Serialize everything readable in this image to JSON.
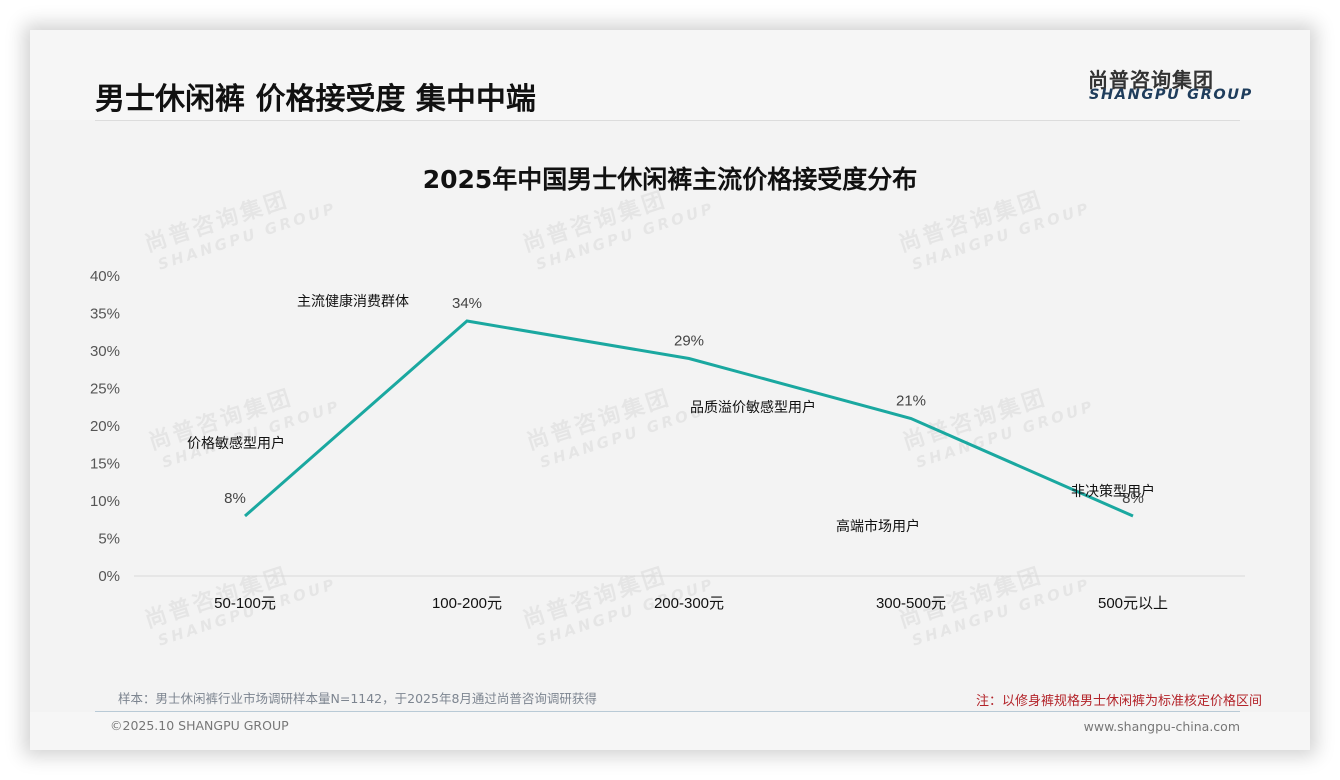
{
  "header": {
    "title": "男士休闲裤 价格接受度 集中中端",
    "logo_cn": "尚普咨询集团",
    "logo_en": "SHANGPU GROUP"
  },
  "watermark": {
    "cn": "尚普咨询集团",
    "en": "SHANGPU GROUP"
  },
  "colors": {
    "line": "#1aa8a0",
    "note": "#b3242a",
    "logo_en": "#1f3d5c"
  },
  "chart_data": {
    "type": "line",
    "title": "2025年中国男士休闲裤主流价格接受度分布",
    "xlabel": "",
    "ylabel": "",
    "categories": [
      "50-100元",
      "100-200元",
      "200-300元",
      "300-500元",
      "500元以上"
    ],
    "series": [
      {
        "name": "价格接受度",
        "values": [
          8,
          34,
          29,
          21,
          8
        ],
        "unit": "%"
      }
    ],
    "data_labels": [
      "8%",
      "34%",
      "29%",
      "21%",
      "8%"
    ],
    "annotations": [
      "价格敏感型用户",
      "主流健康消费群体",
      "品质溢价敏感型用户",
      "高端市场用户",
      "非决策型用户"
    ],
    "yticks": [
      "0%",
      "5%",
      "10%",
      "15%",
      "20%",
      "25%",
      "30%",
      "35%",
      "40%"
    ],
    "ylim": [
      0,
      40
    ],
    "grid": false,
    "legend": "none"
  },
  "footer": {
    "source": "样本：男士休闲裤行业市场调研样本量N=1142，于2025年8月通过尚普咨询调研获得",
    "note": "注：以修身裤规格男士休闲裤为标准核定价格区间",
    "copyright": "©2025.10 SHANGPU GROUP",
    "website": "www.shangpu-china.com"
  }
}
